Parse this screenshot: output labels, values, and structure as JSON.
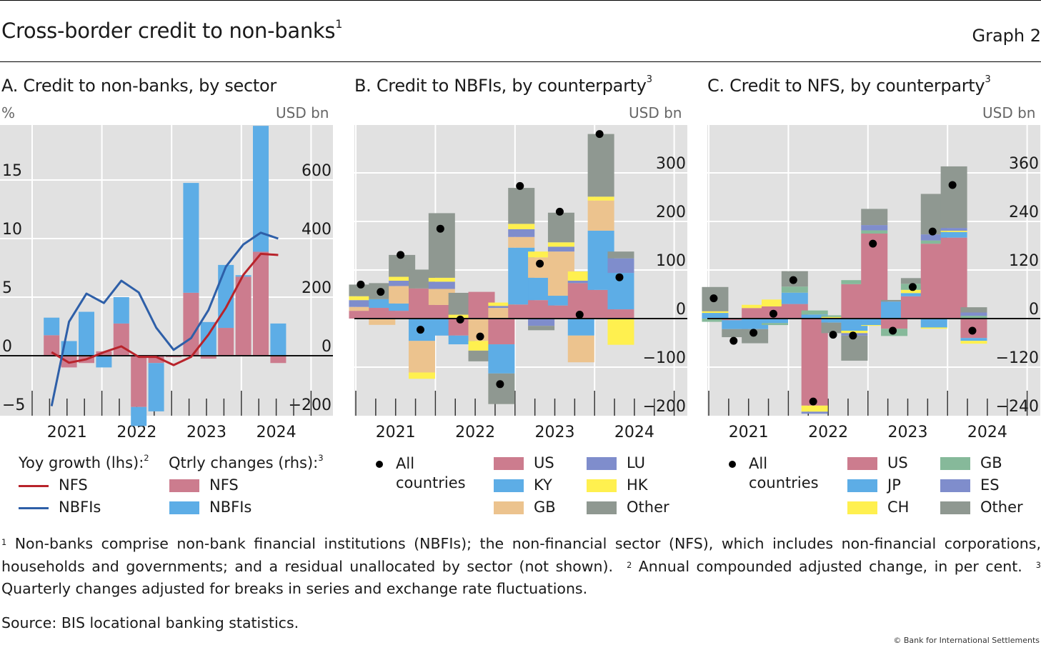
{
  "header": {
    "title": "Cross-border credit to non-banks",
    "title_footnote": "1",
    "graph_label": "Graph 2"
  },
  "colors": {
    "US": "#cc7c8e",
    "NFS_bar": "#cc7c8e",
    "KY": "#5dade6",
    "JP": "#5dade6",
    "NBFIs_bar": "#5dade6",
    "GB_B": "#ecc38e",
    "LU": "#7f8dcc",
    "ES": "#7f8dcc",
    "HK": "#fff04f",
    "CH": "#fff04f",
    "GB_C": "#86b99a",
    "Other": "#8f9891",
    "NFS_line": "#b8232b",
    "NBFIs_line": "#2e5fa8",
    "plot_bg": "#e1e1e1",
    "grid": "#ffffff"
  },
  "panels": {
    "A": {
      "title": "A. Credit to non-banks, by sector",
      "unit_left": "%",
      "unit_right": "USD bn",
      "legend": {
        "lines_heading": "Yoy growth (lhs):",
        "lines_fn": "2",
        "bars_heading": "Qtrly changes (rhs):",
        "bars_fn": "3",
        "nfs_line": "NFS",
        "nbfi_line": "NBFIs",
        "nfs_bar": "NFS",
        "nbfi_bar": "NBFIs"
      }
    },
    "B": {
      "title": "B. Credit to NBFIs, by counterparty",
      "title_fn": "3",
      "unit_right": "USD bn",
      "legend": {
        "dot": "All countries",
        "items": [
          "US",
          "KY",
          "GB",
          "LU",
          "HK",
          "Other"
        ]
      }
    },
    "C": {
      "title": "C. Credit to NFS, by counterparty",
      "title_fn": "3",
      "unit_right": "USD bn",
      "legend": {
        "dot": "All countries",
        "items": [
          "US",
          "JP",
          "CH",
          "GB",
          "ES",
          "Other"
        ]
      }
    }
  },
  "chart_data": [
    {
      "id": "A",
      "type": "bar",
      "title": "A. Credit to non-banks, by sector",
      "quarters": [
        "2021Q1",
        "2021Q2",
        "2021Q3",
        "2021Q4",
        "2022Q1",
        "2022Q2",
        "2022Q3",
        "2022Q4",
        "2023Q1",
        "2023Q2",
        "2023Q3",
        "2023Q4",
        "2024Q1",
        "2024Q2"
      ],
      "year_labels": [
        "2021",
        "2022",
        "2023",
        "2024"
      ],
      "left_axis": {
        "label": "%",
        "ylim": [
          -5,
          18.5
        ],
        "ticks": [
          -5,
          0,
          5,
          10,
          15
        ]
      },
      "right_axis": {
        "label": "USD bn",
        "ylim": [
          -200,
          740
        ],
        "ticks": [
          -200,
          0,
          200,
          400,
          600
        ]
      },
      "bar_series": [
        {
          "name": "NFS",
          "axis": "rhs",
          "values": [
            70,
            -40,
            -25,
            15,
            110,
            -175,
            -25,
            -5,
            215,
            -10,
            95,
            270,
            355,
            -25
          ]
        },
        {
          "name": "NBFIs",
          "axis": "rhs",
          "values": [
            60,
            50,
            150,
            -40,
            90,
            -65,
            -165,
            0,
            375,
            115,
            215,
            5,
            430,
            110
          ]
        }
      ],
      "line_series": [
        {
          "name": "NFS",
          "axis": "lhs",
          "x_offset": 0.5,
          "values": [
            0.3,
            -0.6,
            -0.3,
            0.3,
            0.8,
            -0.1,
            -0.1,
            -0.8,
            -0.1,
            1.8,
            4.1,
            6.9,
            8.7,
            8.6
          ]
        },
        {
          "name": "NBFIs",
          "axis": "lhs",
          "x_offset": 0.5,
          "values": [
            -4.3,
            2.9,
            5.3,
            4.5,
            6.4,
            5.4,
            2.4,
            0.5,
            1.5,
            3.9,
            7.6,
            9.5,
            10.5,
            10.0
          ]
        }
      ],
      "grid": true
    },
    {
      "id": "B",
      "type": "bar",
      "title": "B. Credit to NBFIs, by counterparty",
      "quarters": [
        "2021Q1",
        "2021Q2",
        "2021Q3",
        "2021Q4",
        "2022Q1",
        "2022Q2",
        "2022Q3",
        "2022Q4",
        "2023Q1",
        "2023Q2",
        "2023Q3",
        "2023Q4",
        "2024Q1",
        "2024Q2"
      ],
      "year_labels": [
        "2021",
        "2022",
        "2023",
        "2024"
      ],
      "ylabel": "USD bn",
      "ylim": [
        -200,
        380
      ],
      "ticks": [
        -200,
        -100,
        0,
        100,
        200,
        300
      ],
      "stack_order": [
        "US",
        "KY",
        "GB",
        "LU",
        "HK",
        "Other"
      ],
      "series": [
        {
          "name": "US",
          "values": [
            16,
            22,
            16,
            62,
            28,
            -35,
            55,
            -53,
            29,
            38,
            27,
            73,
            59,
            19
          ]
        },
        {
          "name": "KY",
          "values": [
            0,
            18,
            15,
            -46,
            -35,
            -18,
            0,
            -60,
            117,
            46,
            20,
            -35,
            122,
            75
          ]
        },
        {
          "name": "GB",
          "values": [
            8,
            -13,
            36,
            -65,
            33,
            0,
            -46,
            22,
            22,
            42,
            91,
            -55,
            62,
            0
          ]
        },
        {
          "name": "LU",
          "values": [
            14,
            0,
            11,
            0,
            15,
            0,
            0,
            4,
            16,
            -15,
            10,
            5,
            0,
            30
          ]
        },
        {
          "name": "HK",
          "values": [
            8,
            0,
            8,
            -13,
            8,
            8,
            -20,
            7,
            11,
            12,
            9,
            19,
            8,
            -54
          ]
        },
        {
          "name": "Other",
          "values": [
            24,
            33,
            45,
            39,
            133,
            45,
            -22,
            -63,
            74,
            -9,
            61,
            0,
            129,
            14
          ]
        }
      ],
      "all_countries": [
        70,
        55,
        131,
        -23,
        185,
        -2,
        -37,
        -135,
        273,
        113,
        220,
        8,
        380,
        85
      ],
      "grid": true
    },
    {
      "id": "C",
      "type": "bar",
      "title": "C. Credit to NFS, by counterparty",
      "quarters": [
        "2021Q1",
        "2021Q2",
        "2021Q3",
        "2021Q4",
        "2022Q1",
        "2022Q2",
        "2022Q3",
        "2022Q4",
        "2023Q1",
        "2023Q2",
        "2023Q3",
        "2023Q4",
        "2024Q1",
        "2024Q2"
      ],
      "year_labels": [
        "2021",
        "2022",
        "2023",
        "2024"
      ],
      "ylabel": "USD bn",
      "ylim": [
        -240,
        450
      ],
      "ticks": [
        -240,
        -120,
        0,
        120,
        240,
        360
      ],
      "stack_order": [
        "US",
        "JP",
        "CH",
        "GB",
        "ES",
        "Other"
      ],
      "series": [
        {
          "name": "US",
          "values": [
            0,
            -4,
            26,
            30,
            36,
            -215,
            0,
            85,
            210,
            -25,
            55,
            185,
            200,
            -48
          ]
        },
        {
          "name": "JP",
          "values": [
            14,
            -22,
            -26,
            -11,
            28,
            10,
            -10,
            -30,
            -16,
            42,
            8,
            -22,
            14,
            -7
          ]
        },
        {
          "name": "CH",
          "values": [
            4,
            0,
            8,
            17,
            0,
            -15,
            4,
            -6,
            -2,
            0,
            8,
            -3,
            3,
            -7
          ]
        },
        {
          "name": "GB",
          "values": [
            -8,
            0,
            0,
            -5,
            15,
            10,
            4,
            10,
            8,
            -18,
            15,
            8,
            0,
            7
          ]
        },
        {
          "name": "ES",
          "values": [
            0,
            0,
            0,
            0,
            0,
            -5,
            0,
            -6,
            13,
            0,
            0,
            15,
            7,
            8
          ]
        },
        {
          "name": "Other",
          "values": [
            60,
            -20,
            -35,
            0,
            38,
            0,
            -26,
            -62,
            40,
            4,
            14,
            100,
            152,
            13
          ]
        }
      ],
      "all_countries": [
        50,
        -55,
        -35,
        12,
        95,
        -205,
        -40,
        -42,
        185,
        -30,
        78,
        215,
        330,
        -30
      ],
      "grid": true
    }
  ],
  "footnotes": {
    "n1_mark": "1",
    "n1": "Non-banks comprise non-bank financial institutions (NBFIs); the non-financial sector (NFS), which includes non-financial corporations, households and governments; and a residual unallocated by sector (not shown).",
    "n2_mark": "2",
    "n2": "Annual compounded adjusted change, in per cent.",
    "n3_mark": "3",
    "n3": "Quarterly changes adjusted for breaks in series and exchange rate fluctuations.",
    "source": "Source: BIS locational banking statistics.",
    "copyright": "© Bank for International Settlements"
  }
}
